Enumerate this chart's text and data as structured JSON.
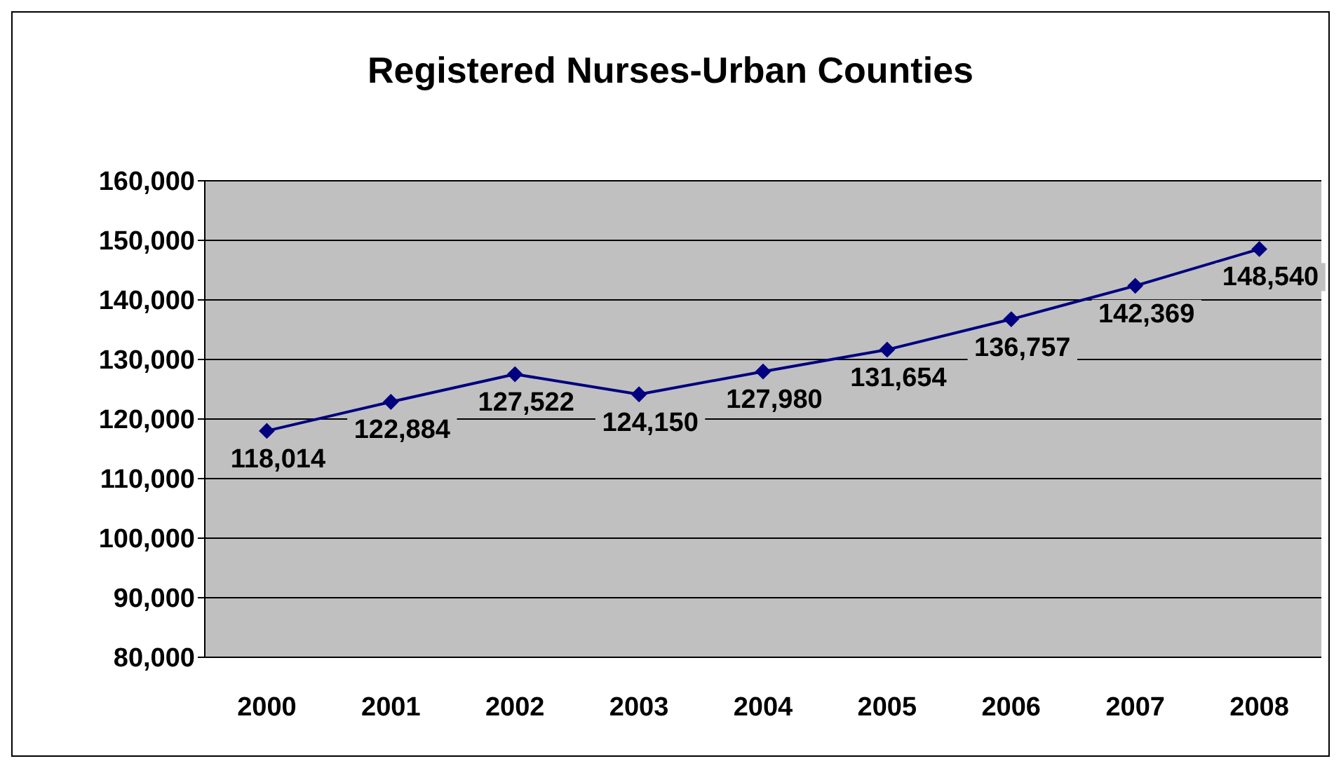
{
  "chart_data": {
    "type": "line",
    "title": "Registered Nurses-Urban Counties",
    "categories": [
      "2000",
      "2001",
      "2002",
      "2003",
      "2004",
      "2005",
      "2006",
      "2007",
      "2008"
    ],
    "series": [
      {
        "color": "#000080",
        "values": [
          118014,
          122884,
          127522,
          124150,
          127980,
          131654,
          136757,
          142369,
          148540
        ],
        "value_labels": [
          "118,014",
          "122,884",
          "127,522",
          "124,150",
          "127,980",
          "131,654",
          "136,757",
          "142,369",
          "148,540"
        ]
      }
    ],
    "ylim": [
      80000,
      160000
    ],
    "yticks": [
      {
        "value": 80000,
        "label": "80,000"
      },
      {
        "value": 90000,
        "label": "90,000"
      },
      {
        "value": 100000,
        "label": "100,000"
      },
      {
        "value": 110000,
        "label": "110,000"
      },
      {
        "value": 120000,
        "label": "120,000"
      },
      {
        "value": 130000,
        "label": "130,000"
      },
      {
        "value": 140000,
        "label": "140,000"
      },
      {
        "value": 150000,
        "label": "150,000"
      },
      {
        "value": 160000,
        "label": "160,000"
      }
    ],
    "grid": "y",
    "marker": "diamond",
    "line_style": "solid"
  }
}
